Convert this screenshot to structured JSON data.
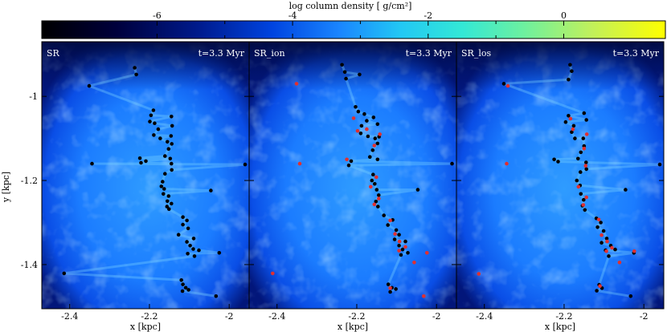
{
  "chart_data": [
    {
      "type": "heatmap",
      "title": "",
      "label": "SR",
      "time_label": "t=3.3 Myr",
      "xlabel": "x [kpc]",
      "ylabel": "y [kpc]",
      "xlim": [
        -2.47,
        -1.95
      ],
      "ylim": [
        -1.505,
        -0.87
      ],
      "x_ticks": [
        -2.4,
        -2.2,
        -2
      ],
      "x_tick_labels": [
        "-2.4",
        "-2.2",
        "-2"
      ],
      "y_ticks": [
        -1.4,
        -1.2,
        -1
      ],
      "y_tick_labels": [
        "-1.4",
        "-1.2",
        "-1"
      ],
      "series": [
        {
          "color": "#000000",
          "points": [
            [
              -2.237,
              -0.932
            ],
            [
              -2.233,
              -0.948
            ],
            [
              -2.351,
              -0.975
            ],
            [
              -2.19,
              -1.033
            ],
            [
              -2.196,
              -1.045
            ],
            [
              -2.199,
              -1.06
            ],
            [
              -2.187,
              -1.064
            ],
            [
              -2.145,
              -1.048
            ],
            [
              -2.143,
              -1.07
            ],
            [
              -2.178,
              -1.078
            ],
            [
              -2.189,
              -1.092
            ],
            [
              -2.173,
              -1.1
            ],
            [
              -2.146,
              -1.094
            ],
            [
              -2.155,
              -1.108
            ],
            [
              -2.144,
              -1.113
            ],
            [
              -2.152,
              -1.125
            ],
            [
              -2.161,
              -1.142
            ],
            [
              -2.224,
              -1.147
            ],
            [
              -2.221,
              -1.158
            ],
            [
              -2.209,
              -1.154
            ],
            [
              -2.148,
              -1.148
            ],
            [
              -2.145,
              -1.16
            ],
            [
              -2.144,
              -1.175
            ],
            [
              -2.161,
              -1.184
            ],
            [
              -2.344,
              -1.16
            ],
            [
              -2.167,
              -1.203
            ],
            [
              -2.17,
              -1.214
            ],
            [
              -2.163,
              -1.22
            ],
            [
              -2.165,
              -1.232
            ],
            [
              -2.152,
              -1.237
            ],
            [
              -2.155,
              -1.249
            ],
            [
              -2.145,
              -1.255
            ],
            [
              -2.156,
              -1.262
            ],
            [
              -2.151,
              -1.268
            ],
            [
              -2.046,
              -1.224
            ],
            [
              -1.96,
              -1.162
            ],
            [
              -2.116,
              -1.287
            ],
            [
              -2.106,
              -1.295
            ],
            [
              -2.116,
              -1.305
            ],
            [
              -2.103,
              -1.314
            ],
            [
              -2.127,
              -1.329
            ],
            [
              -2.089,
              -1.338
            ],
            [
              -2.106,
              -1.346
            ],
            [
              -2.098,
              -1.355
            ],
            [
              -2.09,
              -1.363
            ],
            [
              -2.104,
              -1.374
            ],
            [
              -2.087,
              -1.38
            ],
            [
              -2.076,
              -1.366
            ],
            [
              -2.025,
              -1.372
            ],
            [
              -2.414,
              -1.421
            ],
            [
              -2.12,
              -1.437
            ],
            [
              -2.116,
              -1.447
            ],
            [
              -2.109,
              -1.455
            ],
            [
              -2.117,
              -1.463
            ],
            [
              -2.102,
              -1.46
            ],
            [
              -2.033,
              -1.475
            ]
          ]
        }
      ]
    },
    {
      "type": "heatmap",
      "title": "",
      "label": "SR_ion",
      "time_label": "t=3.3 Myr",
      "xlabel": "x [kpc]",
      "ylabel": "",
      "xlim": [
        -2.47,
        -1.95
      ],
      "ylim": [
        -1.505,
        -0.87
      ],
      "x_ticks": [
        -2.4,
        -2.2,
        -2
      ],
      "x_tick_labels": [
        "-2.4",
        "-2.2",
        "-2"
      ],
      "y_ticks": [
        -1.4,
        -1.2,
        -1
      ],
      "y_tick_labels": [
        "",
        "",
        ""
      ],
      "series": [
        {
          "color": "#000000",
          "points": [
            [
              -2.237,
              -0.925
            ],
            [
              -2.23,
              -0.942
            ],
            [
              -2.227,
              -0.958
            ],
            [
              -2.193,
              -0.948
            ],
            [
              -2.203,
              -1.025
            ],
            [
              -2.196,
              -1.036
            ],
            [
              -2.181,
              -1.042
            ],
            [
              -2.158,
              -1.05
            ],
            [
              -2.148,
              -1.066
            ],
            [
              -2.175,
              -1.058
            ],
            [
              -2.188,
              -1.07
            ],
            [
              -2.19,
              -1.088
            ],
            [
              -2.172,
              -1.095
            ],
            [
              -2.154,
              -1.1
            ],
            [
              -2.144,
              -1.096
            ],
            [
              -2.148,
              -1.112
            ],
            [
              -2.16,
              -1.128
            ],
            [
              -2.167,
              -1.144
            ],
            [
              -2.148,
              -1.15
            ],
            [
              -2.214,
              -1.154
            ],
            [
              -2.22,
              -1.164
            ],
            [
              -2.159,
              -1.186
            ],
            [
              -2.162,
              -1.2
            ],
            [
              -2.155,
              -1.208
            ],
            [
              -2.15,
              -1.222
            ],
            [
              -2.145,
              -1.235
            ],
            [
              -2.152,
              -1.25
            ],
            [
              -2.147,
              -1.262
            ],
            [
              -2.132,
              -1.283
            ],
            [
              -2.11,
              -1.294
            ],
            [
              -2.122,
              -1.306
            ],
            [
              -2.101,
              -1.318
            ],
            [
              -2.094,
              -1.329
            ],
            [
              -2.105,
              -1.34
            ],
            [
              -2.078,
              -1.345
            ],
            [
              -2.094,
              -1.355
            ],
            [
              -2.085,
              -1.364
            ],
            [
              -2.089,
              -1.377
            ],
            [
              -2.072,
              -1.372
            ],
            [
              -2.121,
              -1.447
            ],
            [
              -2.112,
              -1.455
            ],
            [
              -2.102,
              -1.458
            ],
            [
              -2.116,
              -1.465
            ],
            [
              -1.961,
              -1.16
            ],
            [
              -2.047,
              -1.222
            ]
          ]
        },
        {
          "color": "#e03030",
          "points": [
            [
              -2.351,
              -0.97
            ],
            [
              -2.208,
              -1.052
            ],
            [
              -2.198,
              -1.082
            ],
            [
              -2.175,
              -1.078
            ],
            [
              -2.142,
              -1.09
            ],
            [
              -2.156,
              -1.117
            ],
            [
              -2.225,
              -1.15
            ],
            [
              -2.151,
              -1.192
            ],
            [
              -2.165,
              -1.215
            ],
            [
              -2.145,
              -1.243
            ],
            [
              -2.156,
              -1.257
            ],
            [
              -2.116,
              -1.295
            ],
            [
              -2.104,
              -1.327
            ],
            [
              -2.093,
              -1.345
            ],
            [
              -2.078,
              -1.358
            ],
            [
              -2.094,
              -1.367
            ],
            [
              -2.116,
              -1.456
            ],
            [
              -2.024,
              -1.372
            ],
            [
              -2.411,
              -1.421
            ],
            [
              -2.343,
              -1.16
            ],
            [
              -2.056,
              -1.395
            ],
            [
              -2.032,
              -1.475
            ]
          ]
        }
      ]
    },
    {
      "type": "heatmap",
      "title": "",
      "label": "SR_los",
      "time_label": "t=3.3 Myr",
      "xlabel": "x [kpc]",
      "ylabel": "",
      "xlim": [
        -2.47,
        -1.95
      ],
      "ylim": [
        -1.505,
        -0.87
      ],
      "x_ticks": [
        -2.4,
        -2.2,
        -2
      ],
      "x_tick_labels": [
        "-2.4",
        "-2.2",
        "-2"
      ],
      "y_ticks": [
        -1.4,
        -1.2,
        -1
      ],
      "y_tick_labels": [
        "",
        "",
        ""
      ],
      "series": [
        {
          "color": "#000000",
          "points": [
            [
              -2.185,
              -0.925
            ],
            [
              -2.181,
              -0.94
            ],
            [
              -2.189,
              -0.96
            ],
            [
              -2.351,
              -0.97
            ],
            [
              -2.15,
              -1.04
            ],
            [
              -2.144,
              -1.056
            ],
            [
              -2.189,
              -1.046
            ],
            [
              -2.196,
              -1.061
            ],
            [
              -2.176,
              -1.07
            ],
            [
              -2.181,
              -1.085
            ],
            [
              -2.173,
              -1.1
            ],
            [
              -2.152,
              -1.1
            ],
            [
              -2.15,
              -1.118
            ],
            [
              -2.158,
              -1.133
            ],
            [
              -2.165,
              -1.148
            ],
            [
              -2.225,
              -1.15
            ],
            [
              -2.215,
              -1.155
            ],
            [
              -2.145,
              -1.157
            ],
            [
              -2.144,
              -1.173
            ],
            [
              -2.159,
              -1.18
            ],
            [
              -2.168,
              -1.2
            ],
            [
              -2.16,
              -1.212
            ],
            [
              -2.158,
              -1.232
            ],
            [
              -2.151,
              -1.246
            ],
            [
              -2.154,
              -1.26
            ],
            [
              -2.148,
              -1.27
            ],
            [
              -2.046,
              -1.222
            ],
            [
              -1.96,
              -1.162
            ],
            [
              -2.119,
              -1.29
            ],
            [
              -2.108,
              -1.3
            ],
            [
              -2.116,
              -1.311
            ],
            [
              -2.101,
              -1.32
            ],
            [
              -2.093,
              -1.338
            ],
            [
              -2.106,
              -1.348
            ],
            [
              -2.083,
              -1.355
            ],
            [
              -2.096,
              -1.366
            ],
            [
              -2.088,
              -1.38
            ],
            [
              -2.072,
              -1.364
            ],
            [
              -2.025,
              -1.372
            ],
            [
              -2.112,
              -1.448
            ],
            [
              -2.105,
              -1.456
            ],
            [
              -2.118,
              -1.462
            ],
            [
              -2.033,
              -1.475
            ]
          ]
        },
        {
          "color": "#e03030",
          "points": [
            [
              -2.341,
              -0.975
            ],
            [
              -2.184,
              -1.053
            ],
            [
              -2.178,
              -1.078
            ],
            [
              -2.143,
              -1.09
            ],
            [
              -2.15,
              -1.124
            ],
            [
              -2.146,
              -1.165
            ],
            [
              -2.164,
              -1.215
            ],
            [
              -2.144,
              -1.24
            ],
            [
              -2.152,
              -1.258
            ],
            [
              -2.113,
              -1.293
            ],
            [
              -2.106,
              -1.33
            ],
            [
              -2.092,
              -1.345
            ],
            [
              -2.08,
              -1.36
            ],
            [
              -2.094,
              -1.368
            ],
            [
              -2.024,
              -1.368
            ],
            [
              -2.344,
              -1.16
            ],
            [
              -2.414,
              -1.422
            ],
            [
              -2.061,
              -1.395
            ],
            [
              -2.11,
              -1.451
            ]
          ]
        }
      ]
    }
  ],
  "colorbar": {
    "label": "log column density [ g/cm²]",
    "min": -7.7,
    "max": 1.5,
    "ticks": [
      -6,
      -4,
      -2,
      0
    ],
    "tick_labels": [
      "-6",
      "-4",
      "-2",
      "0"
    ],
    "stops": [
      {
        "value": -7.7,
        "color": "#000000"
      },
      {
        "value": -6.6,
        "color": "#00003c"
      },
      {
        "value": -5.4,
        "color": "#001a8c"
      },
      {
        "value": -4.3,
        "color": "#0044e0"
      },
      {
        "value": -3.3,
        "color": "#1a86ff"
      },
      {
        "value": -2.4,
        "color": "#22c8f4"
      },
      {
        "value": -1.5,
        "color": "#33e8d6"
      },
      {
        "value": -0.6,
        "color": "#6cf0a0"
      },
      {
        "value": 0.4,
        "color": "#c0f05c"
      },
      {
        "value": 1.5,
        "color": "#ffff00"
      }
    ]
  }
}
